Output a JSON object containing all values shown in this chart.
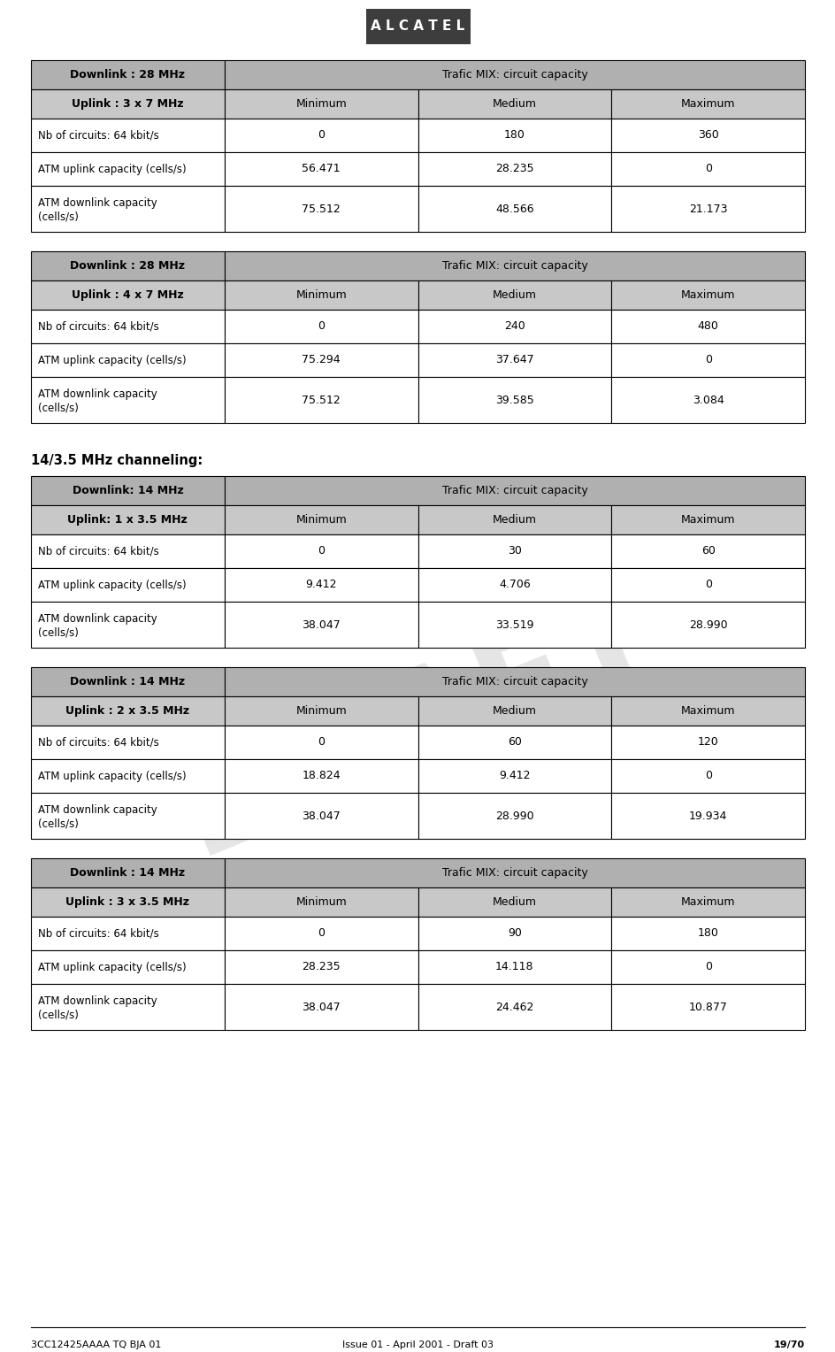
{
  "header_bg": "#b0b0b0",
  "subheader_bg": "#c8c8c8",
  "white_bg": "#ffffff",
  "text_color": "#000000",
  "logo_bg": "#3d3d3d",
  "logo_text": "#ffffff",
  "arrow_color": "#cc4400",
  "draft_color": "#aaaaaa",
  "footer_left": "3CC12425AAAA TQ BJA 01",
  "footer_center": "Issue 01 - April 2001 - Draft 03",
  "footer_right": "19/70",
  "section_title": "14/3.5 MHz channeling:",
  "tables": [
    {
      "header_left": "Downlink : 28 MHz",
      "header_right": "Trafic MIX: circuit capacity",
      "subheader_left": "Uplink : 3 x 7 MHz",
      "cols": [
        "Minimum",
        "Medium",
        "Maximum"
      ],
      "rows": [
        [
          "Nb of circuits: 64 kbit/s",
          "0",
          "180",
          "360"
        ],
        [
          "ATM uplink capacity (cells/s)",
          "56.471",
          "28.235",
          "0"
        ],
        [
          "ATM downlink capacity\n(cells/s)",
          "75.512",
          "48.566",
          "21.173"
        ]
      ]
    },
    {
      "header_left": "Downlink : 28 MHz",
      "header_right": "Trafic MIX: circuit capacity",
      "subheader_left": "Uplink : 4 x 7 MHz",
      "cols": [
        "Minimum",
        "Medium",
        "Maximum"
      ],
      "rows": [
        [
          "Nb of circuits: 64 kbit/s",
          "0",
          "240",
          "480"
        ],
        [
          "ATM uplink capacity (cells/s)",
          "75.294",
          "37.647",
          "0"
        ],
        [
          "ATM downlink capacity\n(cells/s)",
          "75.512",
          "39.585",
          "3.084"
        ]
      ]
    },
    {
      "header_left": "Downlink: 14 MHz",
      "header_right": "Trafic MIX: circuit capacity",
      "subheader_left": "Uplink: 1 x 3.5 MHz",
      "cols": [
        "Minimum",
        "Medium",
        "Maximum"
      ],
      "rows": [
        [
          "Nb of circuits: 64 kbit/s",
          "0",
          "30",
          "60"
        ],
        [
          "ATM uplink capacity (cells/s)",
          "9.412",
          "4.706",
          "0"
        ],
        [
          "ATM downlink capacity\n(cells/s)",
          "38.047",
          "33.519",
          "28.990"
        ]
      ]
    },
    {
      "header_left": "Downlink : 14 MHz",
      "header_right": "Trafic MIX: circuit capacity",
      "subheader_left": "Uplink : 2 x 3.5 MHz",
      "cols": [
        "Minimum",
        "Medium",
        "Maximum"
      ],
      "rows": [
        [
          "Nb of circuits: 64 kbit/s",
          "0",
          "60",
          "120"
        ],
        [
          "ATM uplink capacity (cells/s)",
          "18.824",
          "9.412",
          "0"
        ],
        [
          "ATM downlink capacity\n(cells/s)",
          "38.047",
          "28.990",
          "19.934"
        ]
      ]
    },
    {
      "header_left": "Downlink : 14 MHz",
      "header_right": "Trafic MIX: circuit capacity",
      "subheader_left": "Uplink : 3 x 3.5 MHz",
      "cols": [
        "Minimum",
        "Medium",
        "Maximum"
      ],
      "rows": [
        [
          "Nb of circuits: 64 kbit/s",
          "0",
          "90",
          "180"
        ],
        [
          "ATM uplink capacity (cells/s)",
          "28.235",
          "14.118",
          "0"
        ],
        [
          "ATM downlink capacity\n(cells/s)",
          "38.047",
          "24.462",
          "10.877"
        ]
      ]
    }
  ]
}
